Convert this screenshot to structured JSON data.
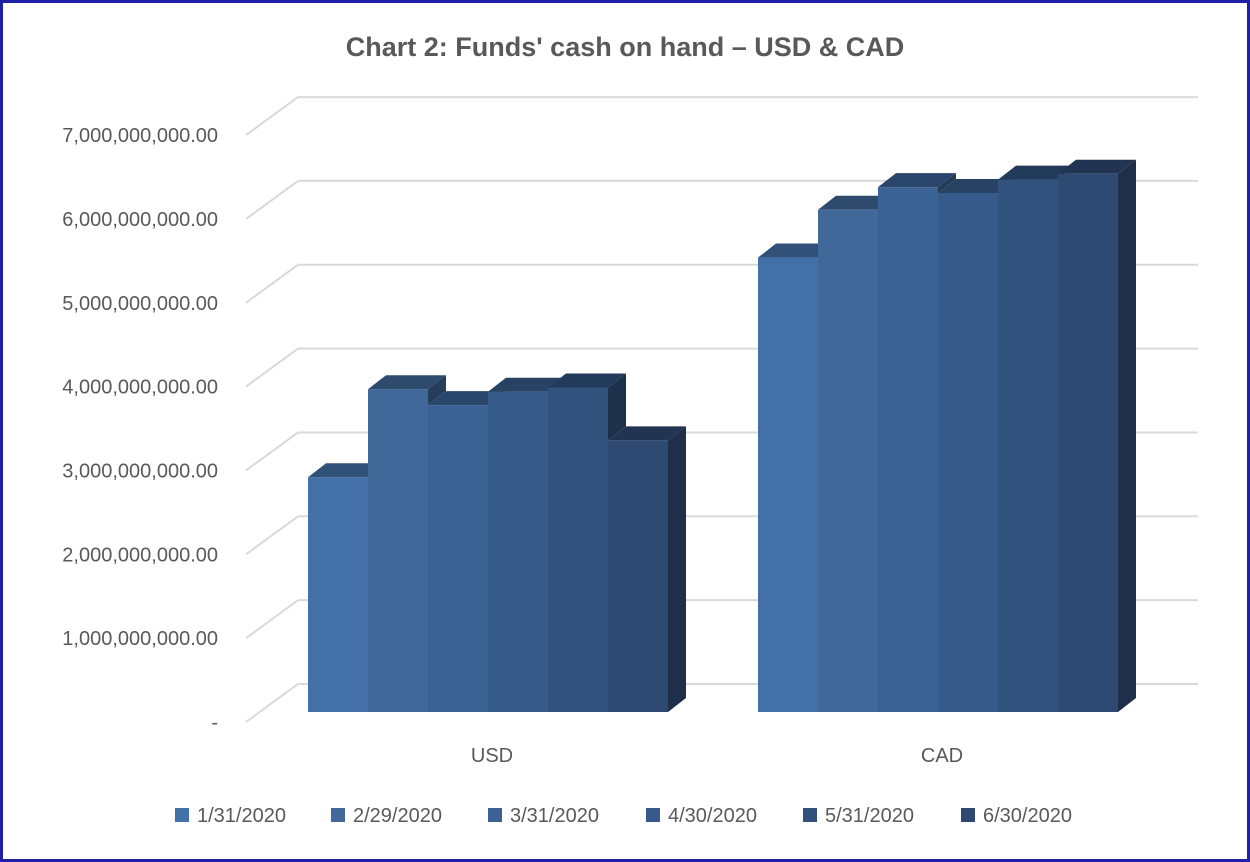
{
  "chart_data": {
    "type": "bar",
    "style": "3d-clustered-column",
    "title": "Chart 2: Funds' cash on hand – USD & CAD",
    "xlabel": "",
    "ylabel": "",
    "categories": [
      "USD",
      "CAD"
    ],
    "series": [
      {
        "name": "1/31/2020",
        "values": [
          2800000000,
          5420000000
        ]
      },
      {
        "name": "2/29/2020",
        "values": [
          3850000000,
          5990000000
        ]
      },
      {
        "name": "3/31/2020",
        "values": [
          3660000000,
          6260000000
        ]
      },
      {
        "name": "4/30/2020",
        "values": [
          3820000000,
          6190000000
        ]
      },
      {
        "name": "5/31/2020",
        "values": [
          3870000000,
          6350000000
        ]
      },
      {
        "name": "6/30/2020",
        "values": [
          3240000000,
          6420000000
        ]
      }
    ],
    "ylim": [
      0,
      7000000000
    ],
    "yticks": [
      0,
      1000000000,
      2000000000,
      3000000000,
      4000000000,
      5000000000,
      6000000000,
      7000000000
    ],
    "ytick_labels": [
      "-",
      "1,000,000,000.00",
      "2,000,000,000.00",
      "3,000,000,000.00",
      "4,000,000,000.00",
      "5,000,000,000.00",
      "6,000,000,000.00",
      "7,000,000,000.00"
    ],
    "grid": true,
    "legend_position": "bottom",
    "colors": [
      "#4470a8",
      "#406899",
      "#3a6294",
      "#365b8a",
      "#31527d",
      "#2e4a72"
    ]
  }
}
